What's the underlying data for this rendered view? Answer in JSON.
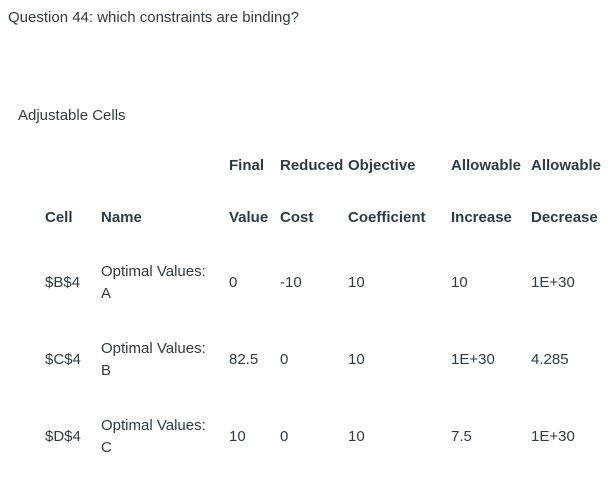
{
  "page": {
    "background_color": "#ffffff",
    "text_color": "#2d3b45"
  },
  "question": {
    "title": "Question 44: which constraints are binding?"
  },
  "section": {
    "label": "Adjustable Cells"
  },
  "table": {
    "header_row1": {
      "cell": "",
      "name": "",
      "final": "Final",
      "reduced": "Reduced",
      "objective": "Objective",
      "increase": "Allowable",
      "decrease": "Allowable"
    },
    "header_row2": {
      "cell": "Cell",
      "name": "Name",
      "final": "Value",
      "reduced": "Cost",
      "objective": "Coefficient",
      "increase": "Increase",
      "decrease": "Decrease"
    },
    "rows": [
      {
        "cell": "$B$4",
        "name": "Optimal Values: A",
        "final_value": "0",
        "reduced_cost": "-10",
        "objective_coefficient": "10",
        "allowable_increase": "10",
        "allowable_decrease": "1E+30"
      },
      {
        "cell": "$C$4",
        "name": "Optimal Values: B",
        "final_value": "82.5",
        "reduced_cost": "0",
        "objective_coefficient": "10",
        "allowable_increase": "1E+30",
        "allowable_decrease": "4.285"
      },
      {
        "cell": "$D$4",
        "name": "Optimal Values: C",
        "final_value": "10",
        "reduced_cost": "0",
        "objective_coefficient": "10",
        "allowable_increase": "7.5",
        "allowable_decrease": "1E+30"
      }
    ]
  }
}
